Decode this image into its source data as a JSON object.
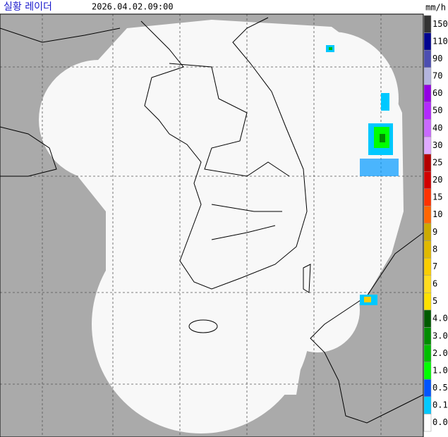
{
  "header": {
    "title": "실황 레이더",
    "time": "2026.04.02.09:00"
  },
  "legend": {
    "unit": "mm/h",
    "items": [
      {
        "label": "150",
        "color": "#333333"
      },
      {
        "label": "110",
        "color": "#000390"
      },
      {
        "label": "90",
        "color": "#4c4eb1"
      },
      {
        "label": "70",
        "color": "#b3b4de"
      },
      {
        "label": "60",
        "color": "#9300e4"
      },
      {
        "label": "50",
        "color": "#b329ff"
      },
      {
        "label": "40",
        "color": "#c969ff"
      },
      {
        "label": "30",
        "color": "#dfa9ff"
      },
      {
        "label": "25",
        "color": "#b40000"
      },
      {
        "label": "20",
        "color": "#d20000"
      },
      {
        "label": "15",
        "color": "#ff3200"
      },
      {
        "label": "10",
        "color": "#ff6600"
      },
      {
        "label": "9",
        "color": "#ccaa00"
      },
      {
        "label": "8",
        "color": "#e0b900"
      },
      {
        "label": "7",
        "color": "#f9cd00"
      },
      {
        "label": "6",
        "color": "#ffdc1f"
      },
      {
        "label": "5",
        "color": "#ffe100"
      },
      {
        "label": "4.0",
        "color": "#005a00"
      },
      {
        "label": "3.0",
        "color": "#008c00"
      },
      {
        "label": "2.0",
        "color": "#00be00"
      },
      {
        "label": "1.0",
        "color": "#00ff00"
      },
      {
        "label": "0.5",
        "color": "#0055ff"
      },
      {
        "label": "0.1",
        "color": "#00c8ff"
      },
      {
        "label": "0.0",
        "color": "#ffffff"
      }
    ]
  }
}
